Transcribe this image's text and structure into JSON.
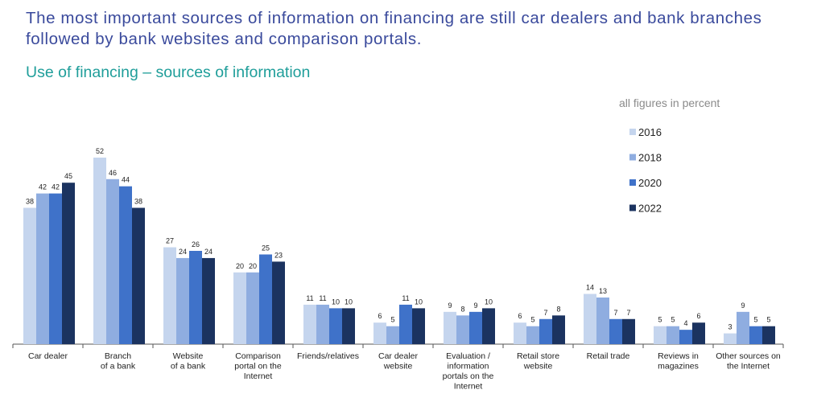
{
  "headline": "The most important sources of information on financing are still car dealers and bank branches followed by bank websites and comparison portals.",
  "subtitle": "Use of financing – sources of information",
  "note": "all figures in percent",
  "colors": [
    "#c5d5ee",
    "#8fade0",
    "#3f72c9",
    "#1b3360"
  ],
  "chart_data": {
    "type": "bar",
    "categories": [
      [
        "Car dealer"
      ],
      [
        "Branch",
        "of a bank"
      ],
      [
        "Website",
        "of a bank"
      ],
      [
        "Comparison",
        "portal on the",
        "Internet"
      ],
      [
        "Friends/relatives"
      ],
      [
        "Car dealer",
        "website"
      ],
      [
        "Evaluation /",
        "information",
        "portals on the",
        "Internet"
      ],
      [
        "Retail store",
        "website"
      ],
      [
        "Retail trade"
      ],
      [
        "Reviews in",
        "magazines"
      ],
      [
        "Other sources on",
        "the Internet"
      ]
    ],
    "series": [
      {
        "name": "2016",
        "values": [
          38,
          52,
          27,
          20,
          11,
          6,
          9,
          6,
          14,
          5,
          3
        ]
      },
      {
        "name": "2018",
        "values": [
          42,
          46,
          24,
          20,
          11,
          5,
          8,
          5,
          13,
          5,
          9
        ]
      },
      {
        "name": "2020",
        "values": [
          42,
          44,
          26,
          25,
          10,
          11,
          9,
          7,
          7,
          4,
          5
        ]
      },
      {
        "name": "2022",
        "values": [
          45,
          38,
          24,
          23,
          10,
          10,
          10,
          8,
          7,
          6,
          5
        ]
      }
    ],
    "ylim": [
      0,
      52
    ],
    "legend_position": "top-right"
  }
}
